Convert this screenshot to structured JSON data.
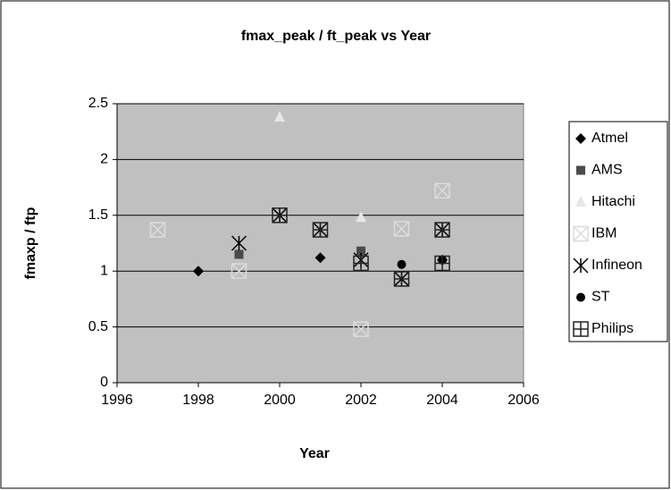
{
  "chart_data": {
    "type": "scatter",
    "title": "fmax_peak / ft_peak vs Year",
    "x_label": "Year",
    "y_label": "fmaxp / ftp",
    "xlim": [
      1996,
      2006
    ],
    "xticks": [
      1996,
      1998,
      2000,
      2002,
      2004,
      2006
    ],
    "ylim": [
      0,
      2.5
    ],
    "yticks": [
      0,
      0.5,
      1,
      1.5,
      2,
      2.5
    ],
    "grid": true,
    "legend": "right",
    "series": [
      {
        "name": "Atmel",
        "color": "#000000",
        "marker": "diamond",
        "x": [
          1998,
          2001,
          2004
        ],
        "values": [
          1.0,
          1.12,
          1.1
        ]
      },
      {
        "name": "AMS",
        "color": "#4a4a4a",
        "marker": "square",
        "x": [
          1999,
          2002
        ],
        "values": [
          1.15,
          1.18
        ]
      },
      {
        "name": "Hitachi",
        "color": "#e6e6e6",
        "marker": "triangle",
        "x": [
          2000,
          2002
        ],
        "values": [
          2.38,
          1.48
        ]
      },
      {
        "name": "IBM",
        "color": "#dcdcdc",
        "marker": "boxx",
        "x": [
          1997,
          1999,
          2002,
          2003,
          2004
        ],
        "values": [
          1.37,
          1.0,
          0.48,
          1.38,
          1.72
        ]
      },
      {
        "name": "Infineon",
        "color": "#000000",
        "marker": "asterisk",
        "x": [
          1999,
          2000,
          2001,
          2002,
          2003,
          2004
        ],
        "values": [
          1.25,
          1.5,
          1.37,
          1.1,
          0.93,
          1.37
        ]
      },
      {
        "name": "ST",
        "color": "#000000",
        "marker": "circle",
        "x": [
          2003,
          2004
        ],
        "values": [
          1.06,
          1.1
        ]
      },
      {
        "name": "Philips",
        "color": "#222222",
        "marker": "boxplus",
        "x": [
          2000,
          2001,
          2002,
          2003,
          2004,
          2004
        ],
        "values": [
          1.5,
          1.37,
          1.07,
          0.93,
          1.07,
          1.37
        ]
      }
    ]
  }
}
